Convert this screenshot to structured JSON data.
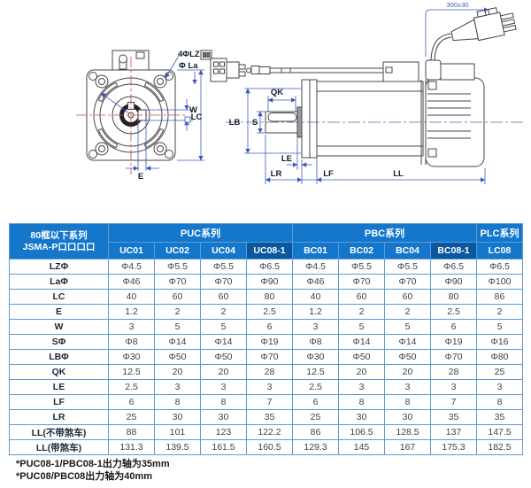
{
  "diagram": {
    "labels": {
      "holes": "4ΦLZ",
      "pilot": "Φ La",
      "w": "W",
      "lc": "LC",
      "e": "E",
      "lb": "LB",
      "s": "S",
      "qk": "QK",
      "le": "LE",
      "lr": "LR",
      "lf": "LF",
      "ll": "LL",
      "cable": "300±30"
    }
  },
  "table": {
    "corner_header": {
      "line1": "80框以下系列",
      "line2": "JSMA-P口口口口"
    },
    "groups": [
      {
        "label": "PUC系列",
        "span": 4
      },
      {
        "label": "PBC系列",
        "span": 4
      },
      {
        "label": "PLC系列",
        "span": 1
      }
    ],
    "columns": [
      "UC01",
      "UC02",
      "UC04",
      "UC08-1",
      "BC01",
      "BC02",
      "BC04",
      "BC08-1",
      "LC08"
    ],
    "highlighted_columns": [
      3,
      7
    ],
    "rows": [
      {
        "label": "LZΦ",
        "values": [
          "Φ4.5",
          "Φ5.5",
          "Φ5.5",
          "Φ6.5",
          "Φ4.5",
          "Φ5.5",
          "Φ5.5",
          "Φ6.5",
          "Φ6.5"
        ]
      },
      {
        "label": "LaΦ",
        "values": [
          "Φ46",
          "Φ70",
          "Φ70",
          "Φ90",
          "Φ46",
          "Φ70",
          "Φ70",
          "Φ90",
          "Φ100"
        ]
      },
      {
        "label": "LC",
        "values": [
          "40",
          "60",
          "60",
          "80",
          "40",
          "60",
          "60",
          "80",
          "86"
        ]
      },
      {
        "label": "E",
        "values": [
          "1.2",
          "2",
          "2",
          "2.5",
          "1.2",
          "2",
          "2",
          "2.5",
          "2"
        ]
      },
      {
        "label": "W",
        "values": [
          "3",
          "5",
          "5",
          "6",
          "3",
          "5",
          "5",
          "6",
          "5"
        ]
      },
      {
        "label": "SΦ",
        "values": [
          "Φ8",
          "Φ14",
          "Φ14",
          "Φ19",
          "Φ8",
          "Φ14",
          "Φ14",
          "Φ19",
          "Φ16"
        ]
      },
      {
        "label": "LBΦ",
        "values": [
          "Φ30",
          "Φ50",
          "Φ50",
          "Φ70",
          "Φ30",
          "Φ50",
          "Φ50",
          "Φ70",
          "Φ80"
        ]
      },
      {
        "label": "QK",
        "values": [
          "12.5",
          "20",
          "20",
          "28",
          "12.5",
          "20",
          "20",
          "28",
          "25"
        ]
      },
      {
        "label": "LE",
        "values": [
          "2.5",
          "3",
          "3",
          "3",
          "2.5",
          "3",
          "3",
          "3",
          "3"
        ]
      },
      {
        "label": "LF",
        "values": [
          "6",
          "8",
          "8",
          "7",
          "6",
          "8",
          "8",
          "7",
          "8"
        ]
      },
      {
        "label": "LR",
        "values": [
          "25",
          "30",
          "30",
          "35",
          "25",
          "30",
          "30",
          "35",
          "35"
        ]
      },
      {
        "label": "LL(不带煞车)",
        "values": [
          "88",
          "101",
          "123",
          "122.2",
          "86",
          "106.5",
          "128.5",
          "137",
          "147.5"
        ]
      },
      {
        "label": "LL(带煞车)",
        "values": [
          "131.3",
          "139.5",
          "161.5",
          "160.5",
          "129.3",
          "145",
          "167",
          "175.3",
          "182.5"
        ]
      }
    ]
  },
  "notes": {
    "line1": "*PUC08-1/PBC08-1出力轴为35mm",
    "line2": "*PUC08/PBC08出力轴为40mm"
  },
  "colors": {
    "header_blue": "#1477cc",
    "header_dark": "#0a569f",
    "table_border": "#5b9bd5",
    "dimension_blue": "#3e56c4",
    "centerline_red": "#cc4444",
    "outline_gray": "#444444"
  }
}
